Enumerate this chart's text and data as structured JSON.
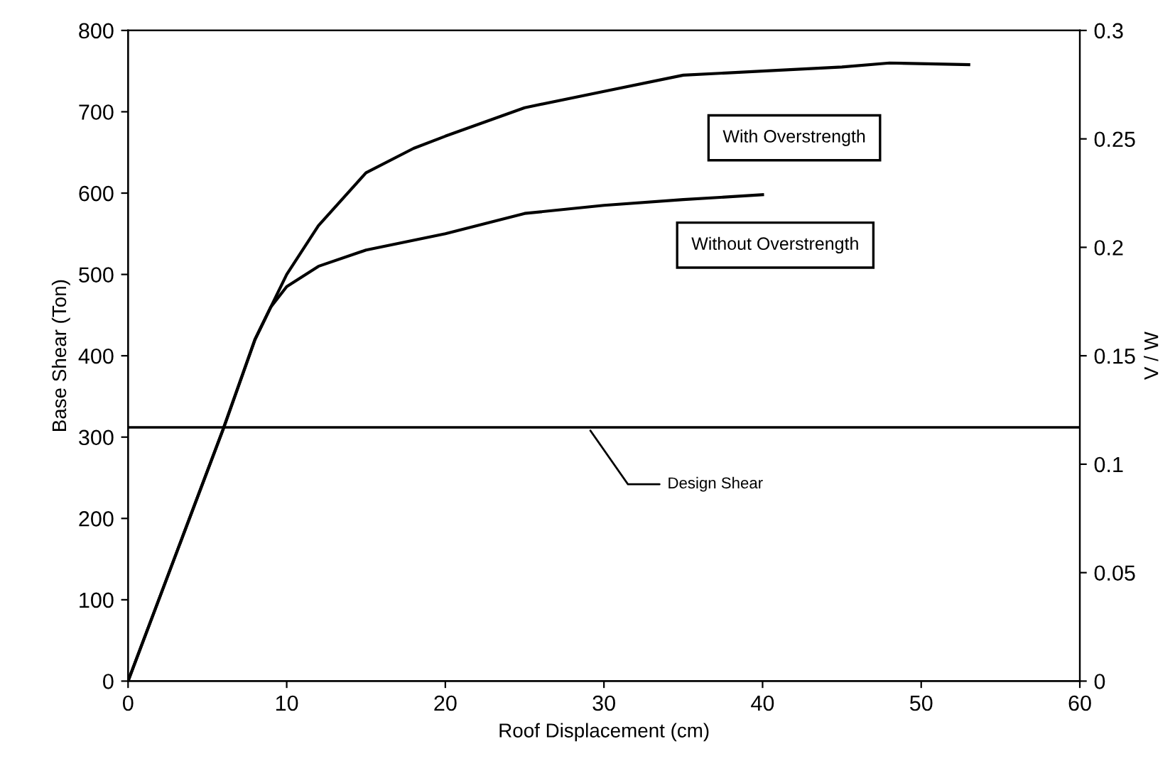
{
  "chart_data": {
    "type": "line",
    "xlabel": "Roof Displacement (cm)",
    "ylabel": "Base Shear (Ton)",
    "y2label": "V / W",
    "xlim": [
      0,
      60
    ],
    "xticks": [
      0,
      10,
      20,
      30,
      40,
      50,
      60
    ],
    "ylim": [
      0,
      800
    ],
    "yticks": [
      0,
      100,
      200,
      300,
      400,
      500,
      600,
      700,
      800
    ],
    "y2lim": [
      0,
      0.3
    ],
    "y2ticks": [
      0,
      0.05,
      0.1,
      0.15,
      0.2,
      0.25,
      0.3
    ],
    "grid": false,
    "legend": false,
    "marker": "none",
    "line_style": "solid",
    "series": [
      {
        "name": "With Overstrength",
        "color": "#000000",
        "x": [
          0,
          6,
          8,
          10,
          12,
          15,
          18,
          20,
          25,
          30,
          35,
          40,
          45,
          48,
          53
        ],
        "values": [
          0,
          310,
          420,
          500,
          560,
          625,
          655,
          670,
          705,
          725,
          745,
          750,
          755,
          760,
          758
        ]
      },
      {
        "name": "Without Overstrength",
        "color": "#000000",
        "x": [
          0,
          6,
          8,
          9,
          10,
          12,
          15,
          20,
          25,
          30,
          35,
          40
        ],
        "values": [
          0,
          310,
          420,
          460,
          485,
          510,
          530,
          550,
          575,
          585,
          592,
          598
        ]
      }
    ],
    "ref_lines": [
      {
        "axis": "y",
        "value": 312,
        "label": "Design Shear",
        "color": "#000000",
        "line_style": "solid"
      }
    ]
  }
}
